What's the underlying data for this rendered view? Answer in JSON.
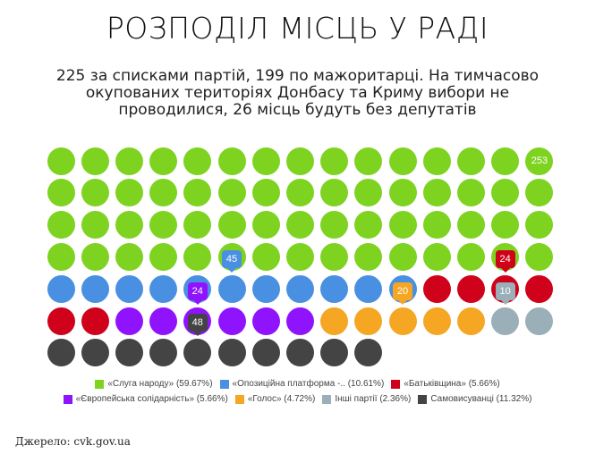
{
  "header": {
    "title": "РОЗПОДІЛ МІСЦЬ У РАДІ",
    "subtitle": "225 за списками партій, 199 по мажоритарці. На тимчасово окупованих територіях Донбасу та Криму вибори не проводилися, 26 місць будуть без депутатів"
  },
  "source": "Джерело: cvk.gov.ua",
  "chart_data": {
    "type": "waffle",
    "title": "РОЗПОДІЛ МІСЦЬ У РАДІ",
    "subtitle": "225 за списками партій, 199 по мажоритарці. На тимчасово окупованих територіях Донбасу та Криму вибори не проводилися, 26 місць будуть без депутатів",
    "grid": {
      "columns": 15,
      "rows": 7,
      "total_dots": 100
    },
    "series": [
      {
        "name": "«Слуга народу»",
        "seats": 253,
        "percent": 59.67,
        "dots": 60,
        "color": "#7ed321",
        "legend": "«Слуга народу» (59.67%)"
      },
      {
        "name": "«Опозиційна платформа -..",
        "seats": 45,
        "percent": 10.61,
        "dots": 11,
        "color": "#4a90e2",
        "legend": "«Опозиційна платформа -.. (10.61%)"
      },
      {
        "name": "«Батьківщина»",
        "seats": 24,
        "percent": 5.66,
        "dots": 6,
        "color": "#d0021b",
        "legend": "«Батьківщина» (5.66%)"
      },
      {
        "name": "«Європейська солідарність»",
        "seats": 24,
        "percent": 5.66,
        "dots": 6,
        "color": "#9013fe",
        "legend": "«Європейська солідарність» (5.66%)"
      },
      {
        "name": "«Голос»",
        "seats": 20,
        "percent": 4.72,
        "dots": 5,
        "color": "#f5a623",
        "legend": "«Голос» (4.72%)"
      },
      {
        "name": "Інші партії",
        "seats": 10,
        "percent": 2.36,
        "dots": 2,
        "color": "#9aafb8",
        "legend": "Інші партії (2.36%)"
      },
      {
        "name": "Самовисуванці",
        "seats": 48,
        "percent": 11.32,
        "dots": 10,
        "color": "#444444",
        "legend": "Самовисуванці (11.32%)"
      }
    ],
    "annotations": [
      {
        "label": "253",
        "series": 0,
        "col": 14,
        "row": 0
      },
      {
        "label": "45",
        "series": 1,
        "col": 5,
        "row": 3
      },
      {
        "label": "24",
        "series": 2,
        "col": 13,
        "row": 3
      },
      {
        "label": "24",
        "series": 3,
        "col": 4,
        "row": 4
      },
      {
        "label": "20",
        "series": 4,
        "col": 10,
        "row": 4
      },
      {
        "label": "10",
        "series": 5,
        "col": 13,
        "row": 4
      },
      {
        "label": "48",
        "series": 6,
        "col": 4,
        "row": 5
      }
    ],
    "legend_position": "bottom"
  }
}
